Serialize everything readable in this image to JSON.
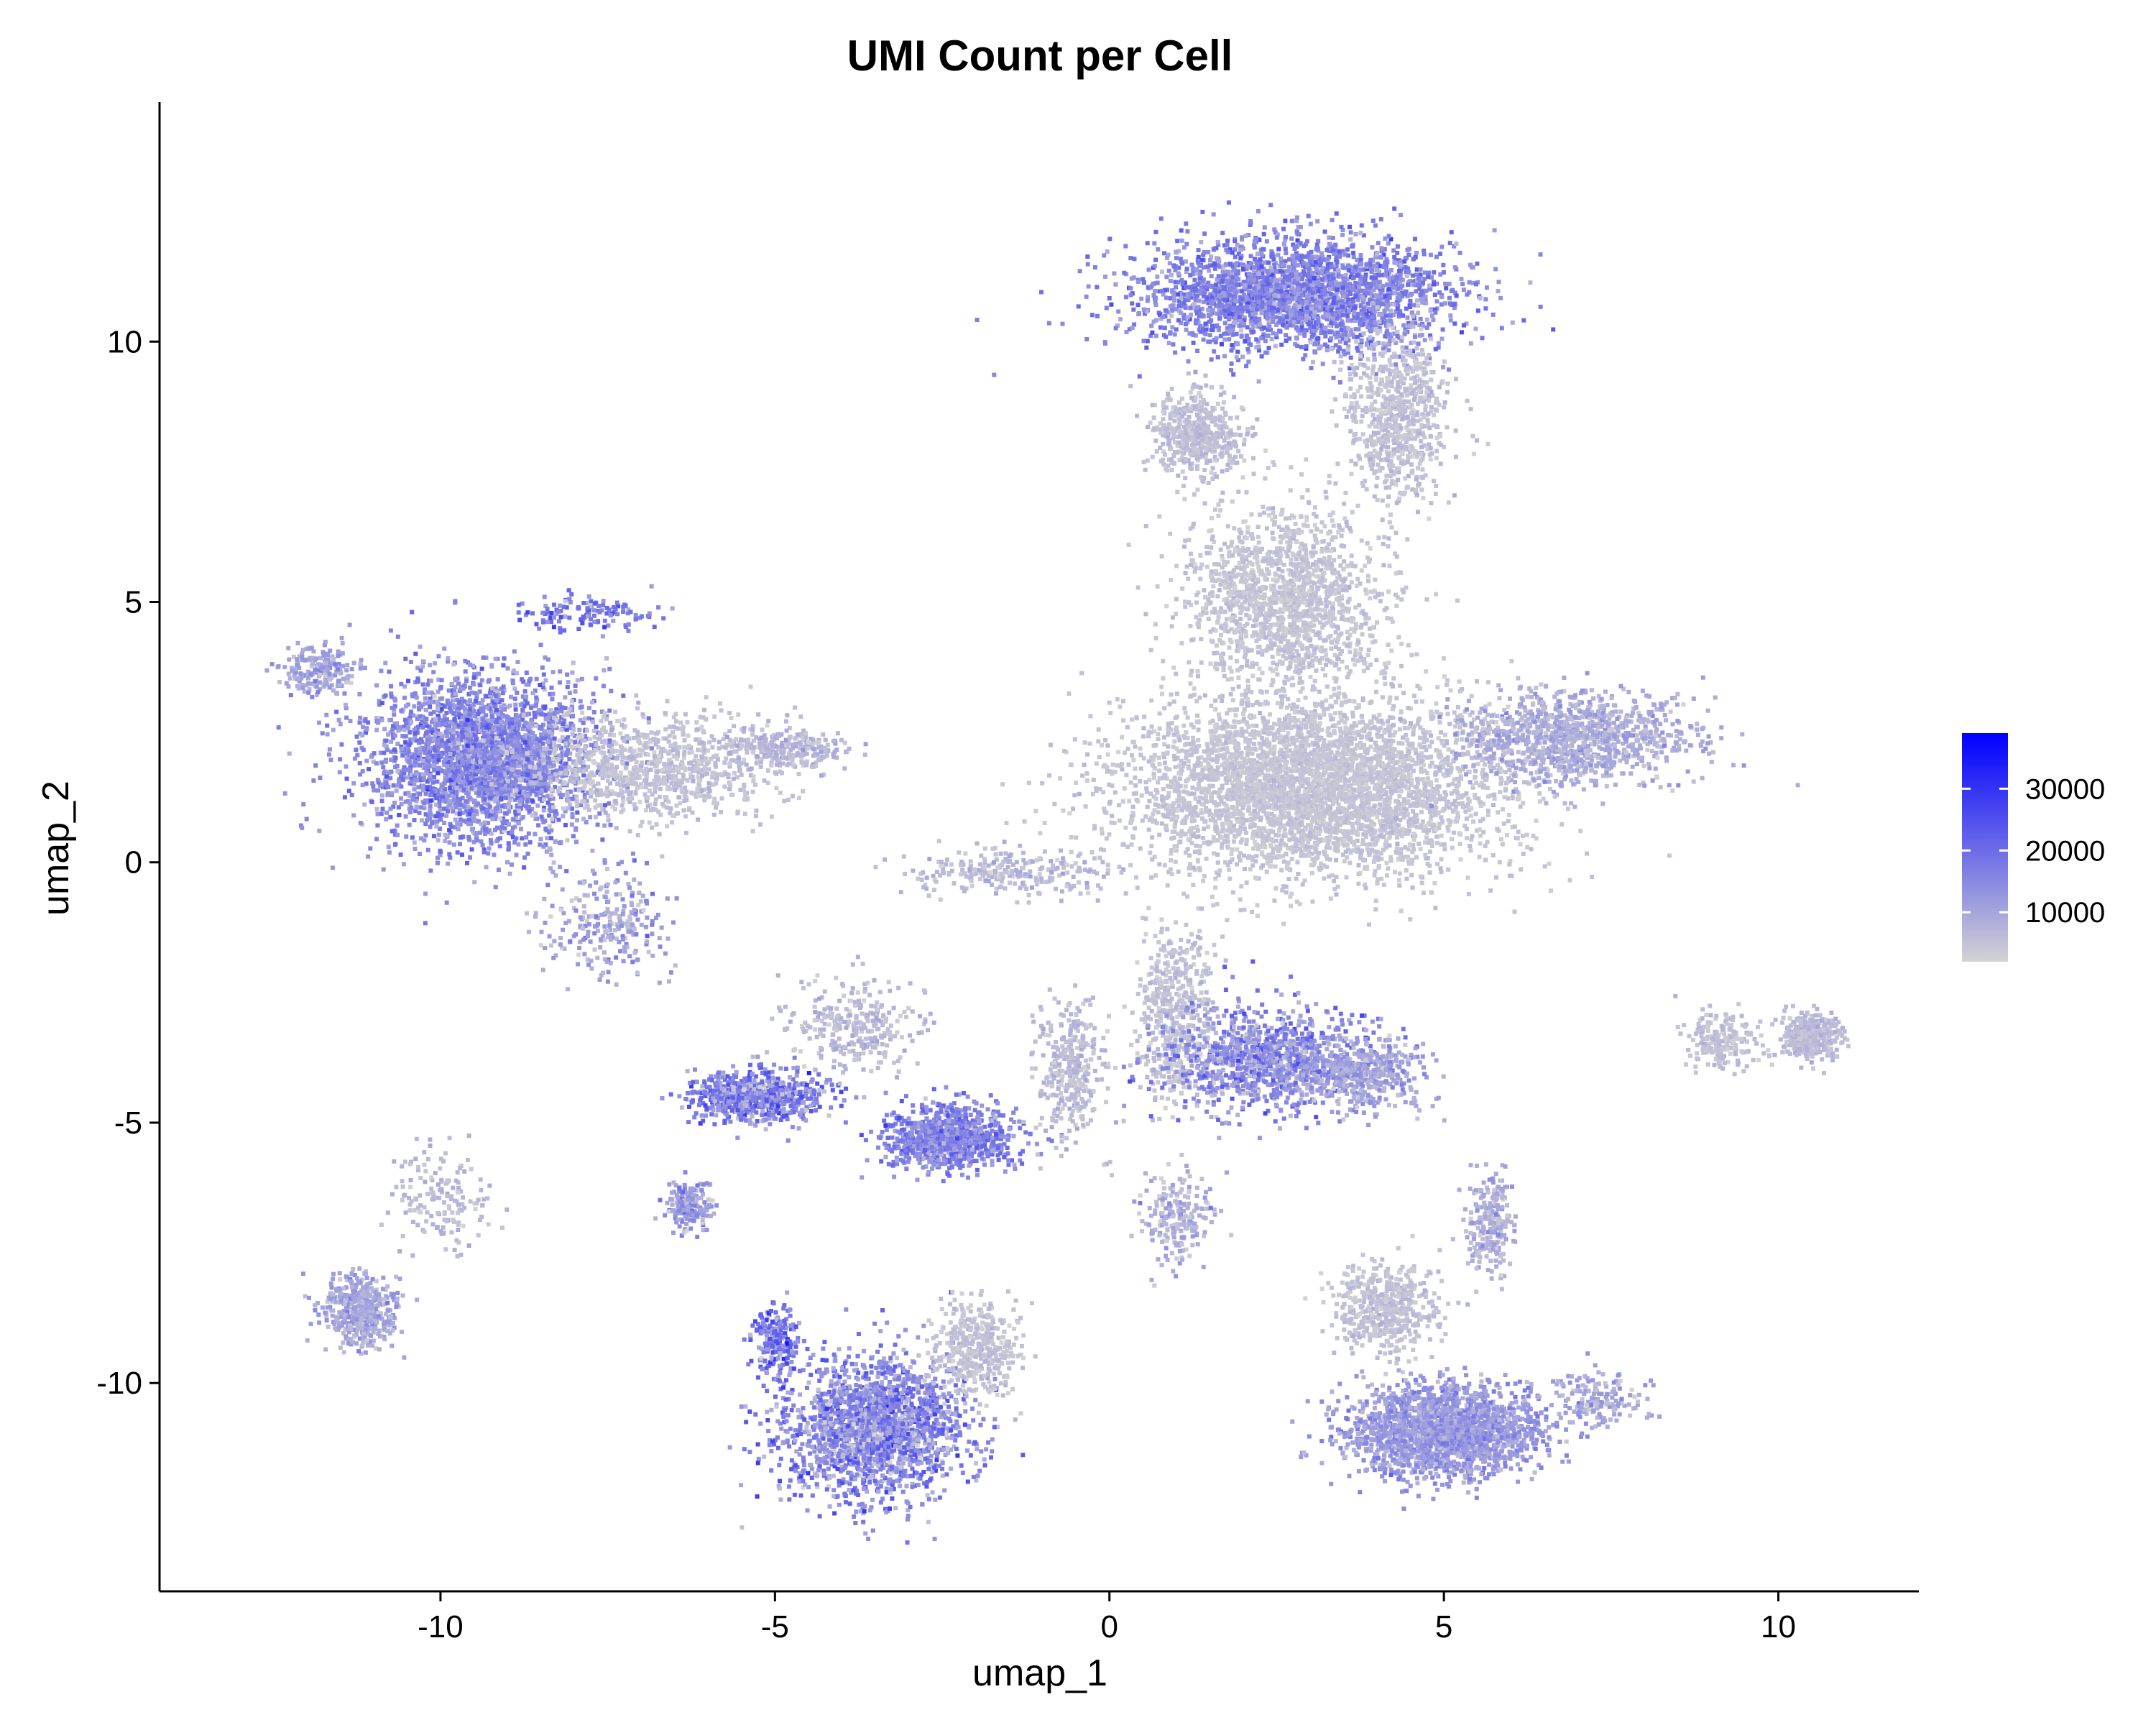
{
  "chart_data": {
    "type": "scatter",
    "title": "UMI Count per Cell",
    "xlabel": "umap_1",
    "ylabel": "umap_2",
    "xlim": [
      -14.2,
      12.1
    ],
    "ylim": [
      -14.0,
      14.6
    ],
    "x_ticks": [
      -10,
      -5,
      0,
      5,
      10
    ],
    "y_ticks": [
      10,
      5,
      0,
      -5,
      -10
    ],
    "x_tick_labels": [
      "-10",
      "-5",
      "0",
      "5",
      "10"
    ],
    "y_tick_labels": [
      "10",
      "5",
      "0",
      "-5",
      "-10"
    ],
    "grid": false,
    "legend": {
      "position": "right",
      "type": "colorbar",
      "ticks": [
        30000,
        20000,
        10000
      ],
      "tick_labels": [
        "30000",
        "20000",
        "10000"
      ],
      "range": [
        2000,
        39000
      ]
    },
    "color_scale": {
      "low": "#d3d3d3",
      "high": "#0000ff",
      "low_value": 2000,
      "high_value": 39000
    },
    "clusters": [
      {
        "cx": 2.8,
        "cy": 10.9,
        "sx": 2.1,
        "sy": 1.0,
        "n": 2600,
        "umi": 16000,
        "spread": 4000
      },
      {
        "cx": 1.3,
        "cy": 8.2,
        "sx": 0.6,
        "sy": 0.7,
        "n": 500,
        "umi": 5500,
        "spread": 1500
      },
      {
        "cx": 4.3,
        "cy": 8.5,
        "sx": 0.7,
        "sy": 1.4,
        "n": 700,
        "umi": 5000,
        "spread": 1500
      },
      {
        "cx": 2.6,
        "cy": 5.0,
        "sx": 1.3,
        "sy": 1.6,
        "n": 1600,
        "umi": 4500,
        "spread": 1200
      },
      {
        "cx": 3.0,
        "cy": 1.4,
        "sx": 2.6,
        "sy": 1.5,
        "n": 4200,
        "umi": 4500,
        "spread": 1000
      },
      {
        "cx": 6.9,
        "cy": 2.4,
        "sx": 1.6,
        "sy": 0.8,
        "n": 1100,
        "umi": 8500,
        "spread": 2500
      },
      {
        "cx": -9.4,
        "cy": 2.0,
        "sx": 1.5,
        "sy": 1.5,
        "n": 2800,
        "umi": 15000,
        "spread": 4000
      },
      {
        "cx": -11.8,
        "cy": 3.7,
        "sx": 0.5,
        "sy": 0.4,
        "n": 200,
        "umi": 10000,
        "spread": 3000
      },
      {
        "cx": -6.8,
        "cy": 1.8,
        "sx": 1.6,
        "sy": 0.9,
        "n": 900,
        "umi": 5000,
        "spread": 1500
      },
      {
        "cx": -7.8,
        "cy": 4.8,
        "sx": 0.9,
        "sy": 0.3,
        "n": 120,
        "umi": 17000,
        "spread": 5000
      },
      {
        "cx": -4.8,
        "cy": 2.2,
        "sx": 0.8,
        "sy": 0.4,
        "n": 250,
        "umi": 7000,
        "spread": 2000
      },
      {
        "cx": -7.5,
        "cy": -1.2,
        "sx": 0.8,
        "sy": 0.9,
        "n": 250,
        "umi": 10000,
        "spread": 4000
      },
      {
        "cx": -5.3,
        "cy": -4.5,
        "sx": 0.9,
        "sy": 0.45,
        "n": 700,
        "umi": 16000,
        "spread": 6000
      },
      {
        "cx": -3.8,
        "cy": -3.2,
        "sx": 0.9,
        "sy": 0.8,
        "n": 300,
        "umi": 6000,
        "spread": 2000
      },
      {
        "cx": -2.4,
        "cy": -5.3,
        "sx": 0.9,
        "sy": 0.55,
        "n": 900,
        "umi": 16000,
        "spread": 4000
      },
      {
        "cx": -0.6,
        "cy": -4.0,
        "sx": 0.5,
        "sy": 1.2,
        "n": 350,
        "umi": 6000,
        "spread": 2000
      },
      {
        "cx": 1.0,
        "cy": -2.9,
        "sx": 0.5,
        "sy": 1.6,
        "n": 500,
        "umi": 5000,
        "spread": 1500
      },
      {
        "cx": 2.4,
        "cy": -3.8,
        "sx": 1.4,
        "sy": 0.9,
        "n": 1100,
        "umi": 14000,
        "spread": 5000
      },
      {
        "cx": 3.8,
        "cy": -4.1,
        "sx": 0.8,
        "sy": 0.6,
        "n": 400,
        "umi": 10000,
        "spread": 3000
      },
      {
        "cx": 1.0,
        "cy": -6.8,
        "sx": 0.5,
        "sy": 0.8,
        "n": 200,
        "umi": 8000,
        "spread": 3000
      },
      {
        "cx": -3.5,
        "cy": -10.9,
        "sx": 1.2,
        "sy": 1.2,
        "n": 1900,
        "umi": 15000,
        "spread": 6000
      },
      {
        "cx": -2.0,
        "cy": -9.4,
        "sx": 0.6,
        "sy": 0.8,
        "n": 400,
        "umi": 5000,
        "spread": 1500
      },
      {
        "cx": -5.0,
        "cy": -9.2,
        "sx": 0.3,
        "sy": 0.6,
        "n": 220,
        "umi": 18000,
        "spread": 6000
      },
      {
        "cx": -6.3,
        "cy": -6.6,
        "sx": 0.3,
        "sy": 0.4,
        "n": 180,
        "umi": 12000,
        "spread": 4000
      },
      {
        "cx": -11.2,
        "cy": -8.6,
        "sx": 0.5,
        "sy": 0.6,
        "n": 420,
        "umi": 10000,
        "spread": 3000
      },
      {
        "cx": -10.0,
        "cy": -6.5,
        "sx": 0.6,
        "sy": 0.9,
        "n": 160,
        "umi": 6000,
        "spread": 2000
      },
      {
        "cx": 5.0,
        "cy": -10.9,
        "sx": 1.3,
        "sy": 0.8,
        "n": 2000,
        "umi": 12000,
        "spread": 3000
      },
      {
        "cx": 4.1,
        "cy": -8.6,
        "sx": 0.7,
        "sy": 0.8,
        "n": 500,
        "umi": 5000,
        "spread": 1500
      },
      {
        "cx": 5.7,
        "cy": -7.0,
        "sx": 0.3,
        "sy": 0.9,
        "n": 250,
        "umi": 8000,
        "spread": 3000
      },
      {
        "cx": 7.3,
        "cy": -10.3,
        "sx": 0.6,
        "sy": 0.5,
        "n": 150,
        "umi": 9000,
        "spread": 3000
      },
      {
        "cx": 10.5,
        "cy": -3.3,
        "sx": 0.4,
        "sy": 0.4,
        "n": 330,
        "umi": 6000,
        "spread": 1500
      },
      {
        "cx": 9.2,
        "cy": -3.4,
        "sx": 0.6,
        "sy": 0.5,
        "n": 200,
        "umi": 5000,
        "spread": 1500
      },
      {
        "cx": -1.5,
        "cy": -0.2,
        "sx": 1.4,
        "sy": 0.4,
        "n": 250,
        "umi": 6000,
        "spread": 2000
      }
    ]
  }
}
